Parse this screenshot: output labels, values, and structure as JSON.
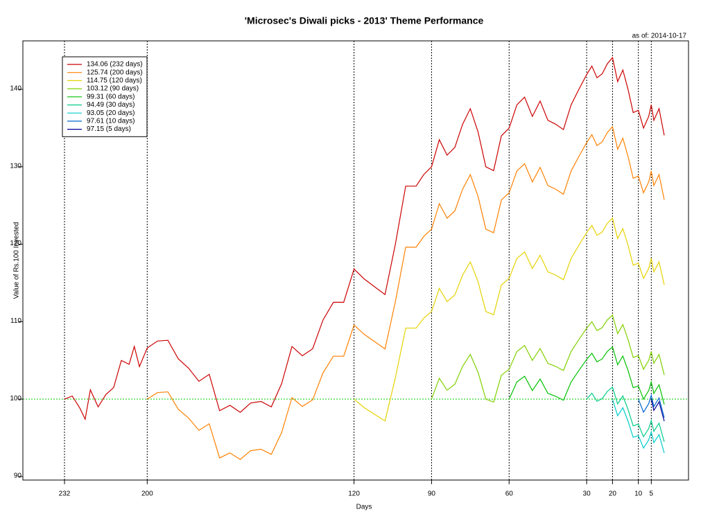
{
  "chart_data": {
    "type": "line",
    "title": "'Microsec's Diwali picks - 2013' Theme Performance",
    "annotation": "as of: 2014-10-17",
    "xlabel": "Days",
    "ylabel": "Value of Rs.100 Invested",
    "xlim": [
      248.1,
      -9.4
    ],
    "xticks": [
      232,
      200,
      120,
      90,
      60,
      30,
      20,
      10,
      5
    ],
    "ylim": [
      89.55,
      146.26
    ],
    "yticks": [
      90,
      100,
      110,
      120,
      130,
      140
    ],
    "grid": true,
    "legend": "top-left",
    "reference_line": {
      "value": 100,
      "color": "#00cc00"
    },
    "x": [
      232,
      229,
      226,
      224,
      222,
      219,
      216,
      213,
      210,
      207,
      205,
      203,
      200,
      196,
      192,
      188,
      184,
      180,
      176,
      172,
      168,
      164,
      160,
      156,
      152,
      148,
      144,
      140,
      136,
      132,
      128,
      124,
      120,
      116,
      112,
      108,
      104,
      100,
      96,
      93,
      90,
      87,
      84,
      81,
      78,
      75,
      72,
      69,
      66,
      63,
      60,
      57,
      54,
      51,
      48,
      45,
      42,
      39,
      36,
      33,
      30,
      28,
      26,
      24,
      22,
      20,
      18,
      16,
      14,
      12,
      10,
      8,
      6,
      5,
      4,
      2,
      0
    ],
    "series": [
      {
        "name": "134.06 (232 days)",
        "color": "#cc0000",
        "values": [
          100,
          100.4,
          98.8,
          97.4,
          101.2,
          99,
          100.6,
          101.5,
          105,
          104.5,
          106.8,
          104.2,
          106.6,
          107.5,
          107.6,
          105.2,
          104,
          102.3,
          103.2,
          98.5,
          99.2,
          98.3,
          99.5,
          99.7,
          99,
          102,
          106.8,
          105.6,
          106.5,
          110.2,
          112.5,
          112.5,
          116.8,
          115.5,
          114.5,
          113.5,
          120,
          127.5,
          127.5,
          129,
          130,
          133.5,
          131.5,
          132.5,
          135.5,
          137.5,
          134.5,
          130,
          129.5,
          134,
          135,
          138,
          139,
          136.5,
          138.5,
          136,
          135.5,
          134.8,
          138,
          140,
          141.9,
          143,
          141.5,
          142,
          143.3,
          144.1,
          141,
          142.5,
          140,
          137,
          137.3,
          135,
          136.5,
          138,
          136,
          137.5,
          134.06
        ]
      },
      {
        "name": "125.74 (200 days)",
        "color": "#ff8000",
        "values": [
          null,
          null,
          null,
          null,
          null,
          null,
          null,
          null,
          null,
          null,
          null,
          null,
          100,
          100.85,
          100.94,
          98.69,
          97.56,
          95.97,
          96.81,
          92.4,
          93.06,
          92.22,
          93.34,
          93.53,
          92.87,
          95.69,
          100.19,
          99.06,
          99.91,
          103.38,
          105.54,
          105.54,
          109.57,
          108.35,
          107.41,
          106.47,
          112.57,
          119.61,
          119.61,
          121.01,
          121.95,
          125.24,
          123.36,
          124.3,
          127.11,
          128.99,
          126.17,
          121.95,
          121.48,
          125.71,
          126.64,
          129.46,
          130.4,
          128.05,
          129.93,
          127.58,
          127.11,
          126.46,
          129.46,
          131.33,
          133.12,
          134.15,
          132.74,
          133.21,
          134.43,
          135.18,
          132.27,
          133.68,
          131.33,
          128.52,
          128.8,
          126.64,
          128.05,
          129.46,
          127.58,
          128.99,
          125.74
        ]
      },
      {
        "name": "114.75 (120 days)",
        "color": "#e6d200",
        "values": [
          null,
          null,
          null,
          null,
          null,
          null,
          null,
          null,
          null,
          null,
          null,
          null,
          null,
          null,
          null,
          null,
          null,
          null,
          null,
          null,
          null,
          null,
          null,
          null,
          null,
          null,
          null,
          null,
          null,
          null,
          null,
          null,
          100,
          98.89,
          98.03,
          97.18,
          102.74,
          109.17,
          109.17,
          110.45,
          111.31,
          114.3,
          112.59,
          113.45,
          116.02,
          117.73,
          115.16,
          111.31,
          110.88,
          114.73,
          115.59,
          118.16,
          119.01,
          116.87,
          118.58,
          116.44,
          116.02,
          115.42,
          118.16,
          119.87,
          121.5,
          122.44,
          121.15,
          121.58,
          122.69,
          123.38,
          120.72,
          122.01,
          119.87,
          117.3,
          117.56,
          115.59,
          116.87,
          118.16,
          116.44,
          117.73,
          114.75
        ]
      },
      {
        "name": "103.12 (90 days)",
        "color": "#80d000",
        "values": [
          null,
          null,
          null,
          null,
          null,
          null,
          null,
          null,
          null,
          null,
          null,
          null,
          null,
          null,
          null,
          null,
          null,
          null,
          null,
          null,
          null,
          null,
          null,
          null,
          null,
          null,
          null,
          null,
          null,
          null,
          null,
          null,
          null,
          null,
          null,
          null,
          null,
          null,
          null,
          null,
          100,
          102.69,
          101.15,
          101.92,
          104.23,
          105.77,
          103.46,
          100,
          99.62,
          103.08,
          103.85,
          106.15,
          106.92,
          105,
          106.54,
          104.62,
          104.23,
          103.69,
          106.15,
          107.69,
          109.15,
          110,
          108.85,
          109.23,
          110.23,
          110.85,
          108.46,
          109.62,
          107.69,
          105.38,
          105.62,
          103.85,
          105,
          106.15,
          104.62,
          105.77,
          103.12
        ]
      },
      {
        "name": "99.31 (60 days)",
        "color": "#00c000",
        "values": [
          null,
          null,
          null,
          null,
          null,
          null,
          null,
          null,
          null,
          null,
          null,
          null,
          null,
          null,
          null,
          null,
          null,
          null,
          null,
          null,
          null,
          null,
          null,
          null,
          null,
          null,
          null,
          null,
          null,
          null,
          null,
          null,
          null,
          null,
          null,
          null,
          null,
          null,
          null,
          null,
          null,
          null,
          null,
          null,
          null,
          null,
          null,
          null,
          null,
          null,
          100,
          102.22,
          102.96,
          101.11,
          102.59,
          100.74,
          100.37,
          99.85,
          102.22,
          103.7,
          105.11,
          105.93,
          104.81,
          105.19,
          106.15,
          106.74,
          104.44,
          105.56,
          103.7,
          101.48,
          101.7,
          100,
          101.11,
          102.22,
          100.74,
          101.85,
          99.31
        ]
      },
      {
        "name": "94.49 (30 days)",
        "color": "#00cc88",
        "values": [
          null,
          null,
          null,
          null,
          null,
          null,
          null,
          null,
          null,
          null,
          null,
          null,
          null,
          null,
          null,
          null,
          null,
          null,
          null,
          null,
          null,
          null,
          null,
          null,
          null,
          null,
          null,
          null,
          null,
          null,
          null,
          null,
          null,
          null,
          null,
          null,
          null,
          null,
          null,
          null,
          null,
          null,
          null,
          null,
          null,
          null,
          null,
          null,
          null,
          null,
          null,
          null,
          null,
          null,
          null,
          null,
          null,
          null,
          null,
          null,
          100,
          100.77,
          99.72,
          100.07,
          100.99,
          101.55,
          99.37,
          100.42,
          98.66,
          96.55,
          96.76,
          95.14,
          96.19,
          97.25,
          95.84,
          96.9,
          94.49
        ]
      },
      {
        "name": "93.05 (20 days)",
        "color": "#00cccc",
        "values": [
          null,
          null,
          null,
          null,
          null,
          null,
          null,
          null,
          null,
          null,
          null,
          null,
          null,
          null,
          null,
          null,
          null,
          null,
          null,
          null,
          null,
          null,
          null,
          null,
          null,
          null,
          null,
          null,
          null,
          null,
          null,
          null,
          null,
          null,
          null,
          null,
          null,
          null,
          null,
          null,
          null,
          null,
          null,
          null,
          null,
          null,
          null,
          null,
          null,
          null,
          null,
          null,
          null,
          null,
          null,
          null,
          null,
          null,
          null,
          null,
          null,
          null,
          null,
          null,
          null,
          100,
          97.85,
          98.89,
          97.15,
          95.07,
          95.28,
          93.68,
          94.73,
          95.77,
          94.38,
          95.42,
          93.05
        ]
      },
      {
        "name": "97.61 (10 days)",
        "color": "#0066cc",
        "values": [
          null,
          null,
          null,
          null,
          null,
          null,
          null,
          null,
          null,
          null,
          null,
          null,
          null,
          null,
          null,
          null,
          null,
          null,
          null,
          null,
          null,
          null,
          null,
          null,
          null,
          null,
          null,
          null,
          null,
          null,
          null,
          null,
          null,
          null,
          null,
          null,
          null,
          null,
          null,
          null,
          null,
          null,
          null,
          null,
          null,
          null,
          null,
          null,
          null,
          null,
          null,
          null,
          null,
          null,
          null,
          null,
          null,
          null,
          null,
          null,
          null,
          null,
          null,
          null,
          null,
          null,
          null,
          null,
          null,
          null,
          100,
          98.32,
          99.42,
          100.51,
          99.05,
          100.15,
          97.61
        ]
      },
      {
        "name": "97.15 (5 days)",
        "color": "#000099",
        "values": [
          null,
          null,
          null,
          null,
          null,
          null,
          null,
          null,
          null,
          null,
          null,
          null,
          null,
          null,
          null,
          null,
          null,
          null,
          null,
          null,
          null,
          null,
          null,
          null,
          null,
          null,
          null,
          null,
          null,
          null,
          null,
          null,
          null,
          null,
          null,
          null,
          null,
          null,
          null,
          null,
          null,
          null,
          null,
          null,
          null,
          null,
          null,
          null,
          null,
          null,
          null,
          null,
          null,
          null,
          null,
          null,
          null,
          null,
          null,
          null,
          null,
          null,
          null,
          null,
          null,
          null,
          null,
          null,
          null,
          null,
          null,
          null,
          null,
          100,
          98.55,
          99.64,
          97.15
        ]
      }
    ]
  }
}
